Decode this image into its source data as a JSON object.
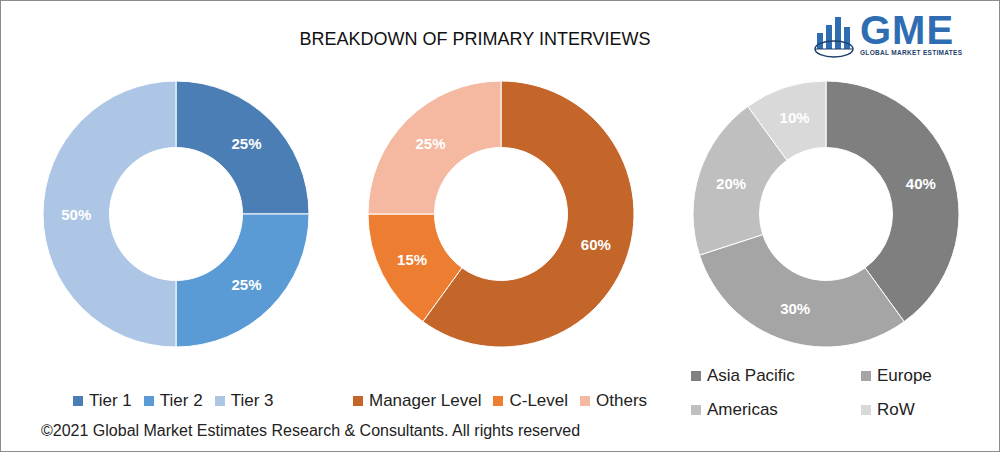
{
  "title": "BREAKDOWN OF PRIMARY INTERVIEWS",
  "logo": {
    "text": "GME",
    "tagline": "GLOBAL MARKET ESTIMATES"
  },
  "footer": "©2021 Global Market Estimates Research & Consultants. All rights reserved",
  "chart_data": [
    {
      "type": "donut",
      "categories": [
        "Tier 1",
        "Tier 2",
        "Tier 3"
      ],
      "values": [
        25,
        25,
        50
      ],
      "value_labels": [
        "25%",
        "25%",
        "50%"
      ],
      "colors": [
        "#4a7eb5",
        "#5b9bd5",
        "#adc6e5"
      ],
      "data_labels": true
    },
    {
      "type": "donut",
      "categories": [
        "Manager Level",
        "C-Level",
        "Others"
      ],
      "values": [
        60,
        15,
        25
      ],
      "value_labels": [
        "60%",
        "15%",
        "25%"
      ],
      "colors": [
        "#c4652a",
        "#ed7d31",
        "#f4b9a0"
      ],
      "data_labels": true
    },
    {
      "type": "donut",
      "categories": [
        "Asia Pacific",
        "Europe",
        "Americas",
        "RoW"
      ],
      "values": [
        40,
        30,
        20,
        10
      ],
      "value_labels": [
        "40%",
        "30%",
        "20%",
        "10%"
      ],
      "colors": [
        "#7f7f7f",
        "#a5a5a5",
        "#bfbfbf",
        "#d9d9d9"
      ],
      "data_labels": true
    }
  ]
}
